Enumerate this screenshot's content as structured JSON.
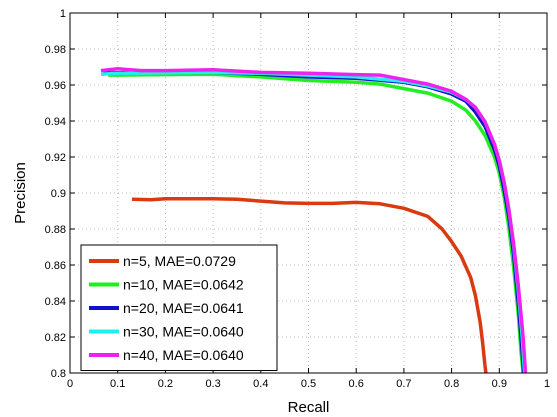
{
  "chart_data": {
    "type": "line",
    "title": "",
    "xlabel": "Recall",
    "ylabel": "Precision",
    "xlim": [
      0,
      1
    ],
    "ylim": [
      0.8,
      1
    ],
    "xticks": [
      0,
      0.1,
      0.2,
      0.3,
      0.4,
      0.5,
      0.6,
      0.7,
      0.8,
      0.9,
      1
    ],
    "xtick_labels": [
      "0",
      "0.1",
      "0.2",
      "0.3",
      "0.4",
      "0.5",
      "0.6",
      "0.7",
      "0.8",
      "0.9",
      "1"
    ],
    "yticks": [
      0.8,
      0.82,
      0.84,
      0.86,
      0.88,
      0.9,
      0.92,
      0.94,
      0.96,
      0.98,
      1
    ],
    "ytick_labels": [
      "0.8",
      "0.82",
      "0.84",
      "0.86",
      "0.88",
      "0.9",
      "0.92",
      "0.94",
      "0.96",
      "0.98",
      "1"
    ],
    "grid": true,
    "legend_position": "bottom-left",
    "series": [
      {
        "name": "n=5, MAE=0.0729",
        "color": "#d93a10",
        "points": [
          [
            0.13,
            0.8965
          ],
          [
            0.17,
            0.8962
          ],
          [
            0.2,
            0.8968
          ],
          [
            0.3,
            0.8968
          ],
          [
            0.35,
            0.8965
          ],
          [
            0.4,
            0.8955
          ],
          [
            0.45,
            0.8945
          ],
          [
            0.5,
            0.8942
          ],
          [
            0.55,
            0.8942
          ],
          [
            0.6,
            0.8948
          ],
          [
            0.65,
            0.894
          ],
          [
            0.7,
            0.8915
          ],
          [
            0.75,
            0.887
          ],
          [
            0.78,
            0.88
          ],
          [
            0.8,
            0.873
          ],
          [
            0.82,
            0.865
          ],
          [
            0.84,
            0.853
          ],
          [
            0.85,
            0.843
          ],
          [
            0.86,
            0.828
          ],
          [
            0.865,
            0.817
          ],
          [
            0.87,
            0.804
          ],
          [
            0.872,
            0.8
          ]
        ]
      },
      {
        "name": "n=10, MAE=0.0642",
        "color": "#22ee22",
        "points": [
          [
            0.08,
            0.9655
          ],
          [
            0.1,
            0.9655
          ],
          [
            0.2,
            0.9658
          ],
          [
            0.3,
            0.966
          ],
          [
            0.4,
            0.9645
          ],
          [
            0.5,
            0.9625
          ],
          [
            0.6,
            0.9615
          ],
          [
            0.65,
            0.9605
          ],
          [
            0.7,
            0.958
          ],
          [
            0.75,
            0.9555
          ],
          [
            0.8,
            0.951
          ],
          [
            0.83,
            0.946
          ],
          [
            0.85,
            0.94
          ],
          [
            0.87,
            0.932
          ],
          [
            0.89,
            0.92
          ],
          [
            0.9,
            0.911
          ],
          [
            0.91,
            0.898
          ],
          [
            0.92,
            0.881
          ],
          [
            0.93,
            0.859
          ],
          [
            0.94,
            0.832
          ],
          [
            0.945,
            0.813
          ],
          [
            0.95,
            0.8
          ]
        ]
      },
      {
        "name": "n=20, MAE=0.0641",
        "color": "#1010cc",
        "points": [
          [
            0.07,
            0.9665
          ],
          [
            0.1,
            0.9668
          ],
          [
            0.2,
            0.967
          ],
          [
            0.3,
            0.967
          ],
          [
            0.4,
            0.966
          ],
          [
            0.5,
            0.9645
          ],
          [
            0.6,
            0.9638
          ],
          [
            0.7,
            0.9615
          ],
          [
            0.75,
            0.959
          ],
          [
            0.8,
            0.955
          ],
          [
            0.83,
            0.951
          ],
          [
            0.85,
            0.945
          ],
          [
            0.87,
            0.937
          ],
          [
            0.89,
            0.924
          ],
          [
            0.9,
            0.915
          ],
          [
            0.91,
            0.902
          ],
          [
            0.92,
            0.887
          ],
          [
            0.93,
            0.866
          ],
          [
            0.94,
            0.838
          ],
          [
            0.947,
            0.815
          ],
          [
            0.951,
            0.8
          ]
        ]
      },
      {
        "name": "n=30, MAE=0.0640",
        "color": "#22eeee",
        "points": [
          [
            0.065,
            0.966
          ],
          [
            0.1,
            0.9665
          ],
          [
            0.2,
            0.9668
          ],
          [
            0.3,
            0.967
          ],
          [
            0.4,
            0.9665
          ],
          [
            0.5,
            0.9655
          ],
          [
            0.6,
            0.9645
          ],
          [
            0.7,
            0.962
          ],
          [
            0.75,
            0.9595
          ],
          [
            0.8,
            0.956
          ],
          [
            0.83,
            0.952
          ],
          [
            0.85,
            0.9475
          ],
          [
            0.87,
            0.9395
          ],
          [
            0.89,
            0.927
          ],
          [
            0.9,
            0.918
          ],
          [
            0.91,
            0.906
          ],
          [
            0.92,
            0.891
          ],
          [
            0.93,
            0.871
          ],
          [
            0.94,
            0.845
          ],
          [
            0.948,
            0.82
          ],
          [
            0.953,
            0.8
          ]
        ]
      },
      {
        "name": "n=40, MAE=0.0640",
        "color": "#ee22ee",
        "points": [
          [
            0.065,
            0.968
          ],
          [
            0.1,
            0.969
          ],
          [
            0.15,
            0.968
          ],
          [
            0.2,
            0.968
          ],
          [
            0.3,
            0.9685
          ],
          [
            0.4,
            0.967
          ],
          [
            0.5,
            0.9665
          ],
          [
            0.6,
            0.9658
          ],
          [
            0.65,
            0.9655
          ],
          [
            0.7,
            0.963
          ],
          [
            0.75,
            0.9605
          ],
          [
            0.8,
            0.9565
          ],
          [
            0.83,
            0.952
          ],
          [
            0.85,
            0.9475
          ],
          [
            0.87,
            0.9395
          ],
          [
            0.89,
            0.927
          ],
          [
            0.9,
            0.918
          ],
          [
            0.91,
            0.906
          ],
          [
            0.92,
            0.891
          ],
          [
            0.93,
            0.872
          ],
          [
            0.94,
            0.848
          ],
          [
            0.95,
            0.82
          ],
          [
            0.955,
            0.8
          ]
        ]
      }
    ]
  }
}
